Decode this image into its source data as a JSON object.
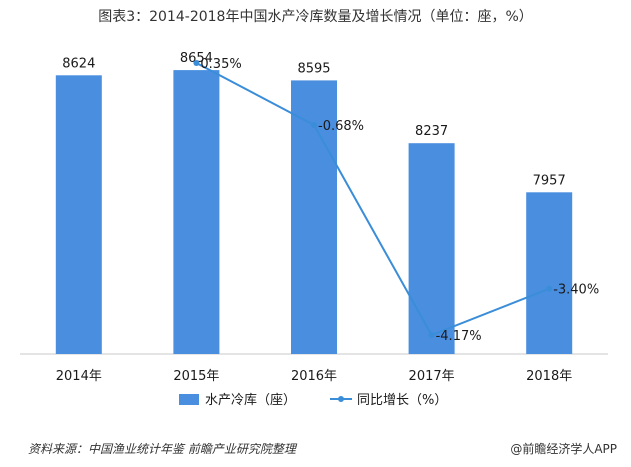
{
  "title": "图表3：2014-2018年中国水产冷库数量及增长情况（单位：座，%）",
  "source": "资料来源：中国渔业统计年鉴 前瞻产业研究院整理",
  "brand": "@前瞻经济学人APP",
  "chart_data": {
    "type": "bar",
    "categories": [
      "2014年",
      "2015年",
      "2016年",
      "2017年",
      "2018年"
    ],
    "series": [
      {
        "name": "水产冷库（座）",
        "type": "bar",
        "color": "#4A8EE0",
        "values": [
          8624,
          8654,
          8595,
          8237,
          7957
        ],
        "labels": [
          "8624",
          "8654",
          "8595",
          "8237",
          "7957"
        ]
      },
      {
        "name": "同比增长（%）",
        "type": "line",
        "color": "#3A8DD8",
        "x": [
          "2015年",
          "2016年",
          "2017年",
          "2018年"
        ],
        "values": [
          0.35,
          -0.68,
          -4.17,
          -3.4
        ],
        "labels": [
          "0.35%",
          "-0.68%",
          "-4.17%",
          "-3.40%"
        ]
      }
    ],
    "legend": "bottom",
    "grid": false
  }
}
